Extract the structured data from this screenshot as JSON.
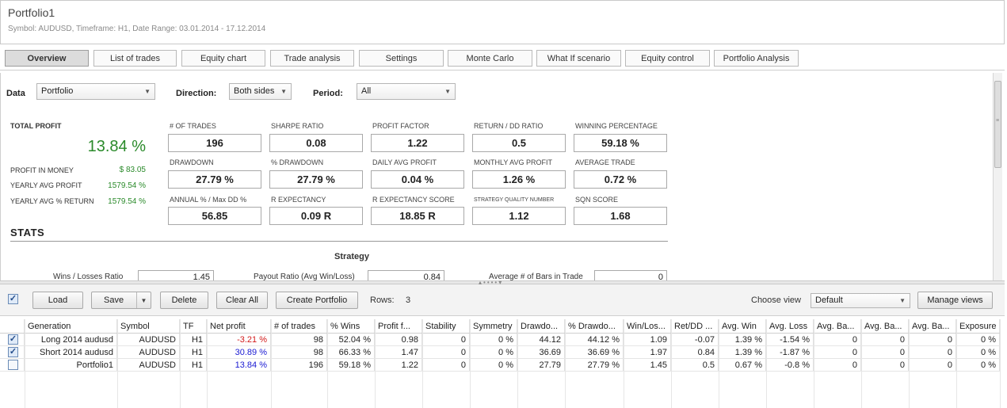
{
  "header": {
    "title": "Portfolio1",
    "subtitle": "Symbol: AUDUSD, Timeframe: H1, Date Range: 03.01.2014 - 17.12.2014"
  },
  "tabs": [
    {
      "label": "Overview",
      "active": true
    },
    {
      "label": "List of trades"
    },
    {
      "label": "Equity chart"
    },
    {
      "label": "Trade analysis"
    },
    {
      "label": "Settings"
    },
    {
      "label": "Monte Carlo"
    },
    {
      "label": "What If scenario"
    },
    {
      "label": "Equity control"
    },
    {
      "label": "Portfolio Analysis"
    }
  ],
  "filters": {
    "data_label": "Data",
    "data_value": "Portfolio",
    "direction_label": "Direction:",
    "direction_value": "Both sides",
    "period_label": "Period:",
    "period_value": "All",
    "arrow": "▼"
  },
  "summary": {
    "total_profit_label": "TOTAL PROFIT",
    "total_profit_value": "13.84 %",
    "profit_in_money_label": "PROFIT IN MONEY",
    "profit_in_money_value": "$ 83.05",
    "yearly_avg_profit_label": "YEARLY AVG PROFIT",
    "yearly_avg_profit_value": "1579.54 %",
    "yearly_avg_return_label": "YEARLY AVG % RETURN",
    "yearly_avg_return_value": "1579.54 %"
  },
  "metrics": [
    {
      "label": "# OF TRADES",
      "value": "196"
    },
    {
      "label": "SHARPE RATIO",
      "value": "0.08"
    },
    {
      "label": "PROFIT FACTOR",
      "value": "1.22"
    },
    {
      "label": "RETURN / DD RATIO",
      "value": "0.5"
    },
    {
      "label": "WINNING PERCENTAGE",
      "value": "59.18 %"
    },
    {
      "label": "DRAWDOWN",
      "value": "27.79 %"
    },
    {
      "label": "% DRAWDOWN",
      "value": "27.79 %"
    },
    {
      "label": "DAILY AVG PROFIT",
      "value": "0.04 %"
    },
    {
      "label": "MONTHLY AVG PROFIT",
      "value": "1.26 %"
    },
    {
      "label": "AVERAGE TRADE",
      "value": "0.72 %"
    },
    {
      "label": "ANNUAL % / Max DD %",
      "value": "56.85"
    },
    {
      "label": "R EXPECTANCY",
      "value": "0.09 R"
    },
    {
      "label": "R EXPECTANCY SCORE",
      "value": "18.85 R"
    },
    {
      "label": "STRATEGY QUALITY NUMBER",
      "value": "1.12"
    },
    {
      "label": "SQN SCORE",
      "value": "1.68"
    }
  ],
  "stats": {
    "title": "STATS",
    "strategy_title": "Strategy",
    "wins_losses_label": "Wins / Losses Ratio",
    "wins_losses_value": "1.45",
    "payout_label": "Payout Ratio (Avg Win/Loss)",
    "payout_value": "0.84",
    "avg_bars_label": "Average # of Bars in Trade",
    "avg_bars_value": "0"
  },
  "toolbar": {
    "load": "Load",
    "save": "Save",
    "delete": "Delete",
    "clear_all": "Clear All",
    "create_portfolio": "Create Portfolio",
    "rows_label": "Rows:",
    "rows_value": "3",
    "choose_view_label": "Choose view",
    "view_value": "Default",
    "manage_views": "Manage views",
    "check": "✓",
    "dropdown": "▼"
  },
  "table": {
    "columns": [
      "Generation",
      "Symbol",
      "TF",
      "Net profit",
      "# of trades",
      "% Wins",
      "Profit f...",
      "Stability",
      "Symmetry",
      "Drawdo...",
      "% Drawdo...",
      "Win/Los...",
      "Ret/DD ...",
      "Avg. Win",
      "Avg. Loss",
      "Avg. Ba...",
      "Avg. Ba...",
      "Avg. Ba...",
      "Exposure"
    ],
    "rows": [
      {
        "checked": true,
        "cells": [
          "Long 2014 audusd",
          "AUDUSD",
          "H1",
          "-3.21 %",
          "98",
          "52.04 %",
          "0.98",
          "0",
          "0 %",
          "44.12",
          "44.12 %",
          "1.09",
          "-0.07",
          "1.39 %",
          "-1.54 %",
          "0",
          "0",
          "0",
          "0 %"
        ]
      },
      {
        "checked": true,
        "cells": [
          "Short 2014 audusd",
          "AUDUSD",
          "H1",
          "30.89 %",
          "98",
          "66.33 %",
          "1.47",
          "0",
          "0 %",
          "36.69",
          "36.69 %",
          "1.97",
          "0.84",
          "1.39 %",
          "-1.87 %",
          "0",
          "0",
          "0",
          "0 %"
        ]
      },
      {
        "checked": false,
        "cells": [
          "Portfolio1",
          "AUDUSD",
          "H1",
          "13.84 %",
          "196",
          "59.18 %",
          "1.22",
          "0",
          "0 %",
          "27.79",
          "27.79 %",
          "1.45",
          "0.5",
          "0.67 %",
          "-0.8 %",
          "0",
          "0",
          "0",
          "0 %"
        ]
      }
    ]
  },
  "colors": {
    "profit_green": "#2a8a2a",
    "negative_red": "#d21a1a",
    "positive_blue": "#1a1ad2",
    "active_tab": "#dcdcdc"
  }
}
